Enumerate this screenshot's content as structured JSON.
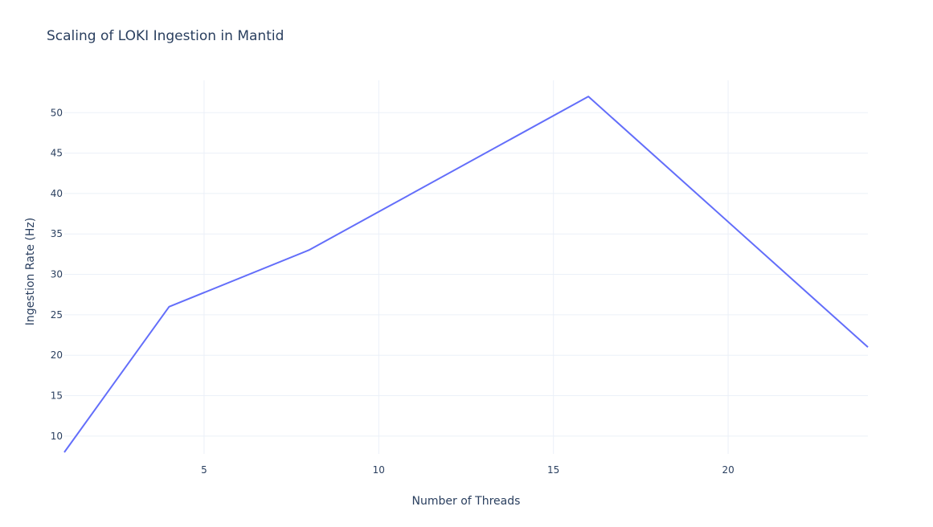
{
  "chart_data": {
    "type": "line",
    "title": "Scaling of LOKI Ingestion in Mantid",
    "xlabel": "Number of Threads",
    "ylabel": "Ingestion Rate (Hz)",
    "xlim": [
      1,
      24
    ],
    "ylim": [
      7.8,
      54
    ],
    "x_ticks": [
      5,
      10,
      15,
      20
    ],
    "y_ticks": [
      10,
      15,
      20,
      25,
      30,
      35,
      40,
      45,
      50
    ],
    "grid": true,
    "line_color": "#636efa",
    "series": [
      {
        "x": [
          1,
          4,
          8,
          16,
          24
        ],
        "y": [
          8,
          26,
          33,
          52,
          21
        ]
      }
    ]
  }
}
